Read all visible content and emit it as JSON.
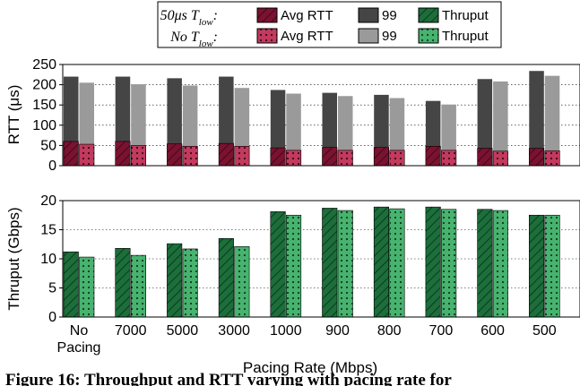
{
  "legend": {
    "row1_var": "50μs T",
    "row1_sub": "low",
    "row1_suffix": ":",
    "row2_var": "No T",
    "row2_sub": "low",
    "row2_suffix": ":",
    "avg_rtt": "Avg RTT",
    "p99": "99",
    "thruput": "Thruput"
  },
  "caption": "Figure 16: Throughput and RTT varying with pacing rate for",
  "colors": {
    "avg_rtt_dark": "#7a1230",
    "avg_rtt_light": "#c23a5e",
    "p99_dark": "#454545",
    "p99_light": "#9a9a9a",
    "thru_dark": "#1c6e3a",
    "thru_light": "#47b36f"
  },
  "chart_data": [
    {
      "type": "bar",
      "ylabel": "RTT (μs)",
      "ylim": [
        0,
        250
      ],
      "yticks": [
        0,
        50,
        100,
        150,
        200,
        250
      ],
      "categories": [
        "No\nPacing",
        "7000",
        "5000",
        "3000",
        "1000",
        "900",
        "800",
        "700",
        "600",
        "500"
      ],
      "series": [
        {
          "name": "Avg RTT",
          "group": "50μs T_low",
          "values": [
            60,
            60,
            54,
            55,
            44,
            45,
            45,
            48,
            43,
            43
          ]
        },
        {
          "name": "99",
          "group": "50μs T_low",
          "values": [
            220,
            220,
            216,
            220,
            187,
            180,
            175,
            160,
            214,
            234
          ]
        },
        {
          "name": "Avg RTT",
          "group": "No T_low",
          "values": [
            53,
            50,
            48,
            48,
            38,
            38,
            38,
            38,
            36,
            37
          ]
        },
        {
          "name": "99",
          "group": "No T_low",
          "values": [
            205,
            201,
            198,
            192,
            178,
            172,
            167,
            151,
            208,
            222
          ]
        }
      ],
      "grid": "horizontal"
    },
    {
      "type": "bar",
      "ylabel": "Thruput (Gbps)",
      "xlabel": "Pacing Rate (Mbps)",
      "ylim": [
        0,
        20
      ],
      "yticks": [
        0,
        5,
        10,
        15,
        20
      ],
      "categories": [
        "No\nPacing",
        "7000",
        "5000",
        "3000",
        "1000",
        "900",
        "800",
        "700",
        "600",
        "500"
      ],
      "series": [
        {
          "name": "Thruput",
          "group": "50μs T_low",
          "values": [
            11.2,
            11.8,
            12.6,
            13.5,
            18.1,
            18.7,
            18.9,
            18.9,
            18.5,
            17.5
          ]
        },
        {
          "name": "Thruput",
          "group": "No T_low",
          "values": [
            10.3,
            10.6,
            11.7,
            12.1,
            17.5,
            18.3,
            18.6,
            18.5,
            18.3,
            17.5
          ]
        }
      ],
      "grid": "horizontal"
    }
  ]
}
